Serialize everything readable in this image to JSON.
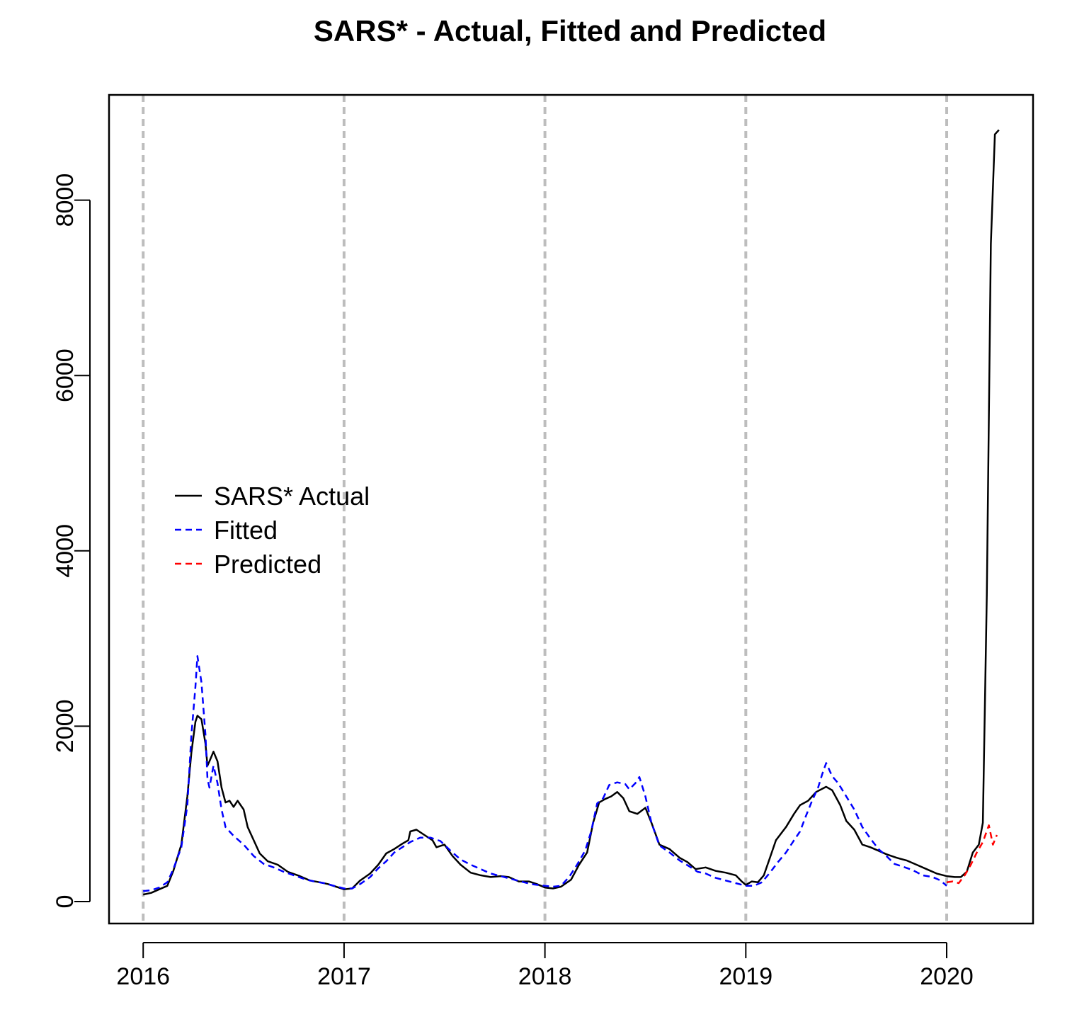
{
  "chart_data": {
    "type": "line",
    "title": "SARS* - Actual, Fitted and Predicted",
    "xlabel": "",
    "ylabel": "",
    "xlim": [
      2015.83,
      2020.43
    ],
    "ylim": [
      -250,
      9200
    ],
    "x_ticks": [
      2016,
      2017,
      2018,
      2019,
      2020
    ],
    "y_ticks": [
      0,
      2000,
      4000,
      6000,
      8000
    ],
    "grid": "vertical dashed lines at each year",
    "legend": {
      "position": "middle-left",
      "entries": [
        {
          "label": "SARS* Actual",
          "color": "#000000",
          "style": "solid"
        },
        {
          "label": "Fitted",
          "color": "#0000ff",
          "style": "dashed"
        },
        {
          "label": "Predicted",
          "color": "#ff0000",
          "style": "dashed"
        }
      ]
    },
    "series": [
      {
        "name": "SARS* Actual",
        "color": "#000000",
        "style": "solid",
        "points": [
          [
            2016.0,
            80
          ],
          [
            2016.04,
            100
          ],
          [
            2016.08,
            140
          ],
          [
            2016.12,
            180
          ],
          [
            2016.15,
            350
          ],
          [
            2016.19,
            650
          ],
          [
            2016.22,
            1200
          ],
          [
            2016.24,
            1700
          ],
          [
            2016.26,
            2050
          ],
          [
            2016.27,
            2120
          ],
          [
            2016.29,
            2080
          ],
          [
            2016.31,
            1800
          ],
          [
            2016.32,
            1550
          ],
          [
            2016.33,
            1600
          ],
          [
            2016.35,
            1710
          ],
          [
            2016.37,
            1600
          ],
          [
            2016.39,
            1300
          ],
          [
            2016.41,
            1130
          ],
          [
            2016.43,
            1150
          ],
          [
            2016.45,
            1080
          ],
          [
            2016.47,
            1150
          ],
          [
            2016.5,
            1050
          ],
          [
            2016.52,
            850
          ],
          [
            2016.55,
            700
          ],
          [
            2016.58,
            550
          ],
          [
            2016.62,
            460
          ],
          [
            2016.67,
            420
          ],
          [
            2016.72,
            340
          ],
          [
            2016.78,
            290
          ],
          [
            2016.83,
            240
          ],
          [
            2016.88,
            220
          ],
          [
            2016.92,
            200
          ],
          [
            2016.96,
            170
          ],
          [
            2017.0,
            140
          ],
          [
            2017.04,
            150
          ],
          [
            2017.08,
            240
          ],
          [
            2017.13,
            320
          ],
          [
            2017.17,
            420
          ],
          [
            2017.21,
            550
          ],
          [
            2017.25,
            600
          ],
          [
            2017.29,
            660
          ],
          [
            2017.32,
            700
          ],
          [
            2017.33,
            800
          ],
          [
            2017.36,
            820
          ],
          [
            2017.4,
            760
          ],
          [
            2017.44,
            700
          ],
          [
            2017.46,
            620
          ],
          [
            2017.5,
            650
          ],
          [
            2017.54,
            520
          ],
          [
            2017.58,
            420
          ],
          [
            2017.63,
            330
          ],
          [
            2017.68,
            300
          ],
          [
            2017.73,
            280
          ],
          [
            2017.78,
            290
          ],
          [
            2017.82,
            280
          ],
          [
            2017.87,
            230
          ],
          [
            2017.92,
            230
          ],
          [
            2017.96,
            200
          ],
          [
            2018.0,
            160
          ],
          [
            2018.04,
            150
          ],
          [
            2018.08,
            170
          ],
          [
            2018.13,
            250
          ],
          [
            2018.17,
            420
          ],
          [
            2018.21,
            560
          ],
          [
            2018.24,
            900
          ],
          [
            2018.27,
            1130
          ],
          [
            2018.3,
            1170
          ],
          [
            2018.33,
            1200
          ],
          [
            2018.36,
            1250
          ],
          [
            2018.39,
            1180
          ],
          [
            2018.42,
            1030
          ],
          [
            2018.46,
            1000
          ],
          [
            2018.5,
            1070
          ],
          [
            2018.53,
            900
          ],
          [
            2018.57,
            650
          ],
          [
            2018.62,
            600
          ],
          [
            2018.67,
            500
          ],
          [
            2018.71,
            450
          ],
          [
            2018.75,
            370
          ],
          [
            2018.8,
            390
          ],
          [
            2018.85,
            350
          ],
          [
            2018.9,
            330
          ],
          [
            2018.95,
            300
          ],
          [
            2018.98,
            230
          ],
          [
            2019.0,
            190
          ],
          [
            2019.03,
            230
          ],
          [
            2019.06,
            220
          ],
          [
            2019.09,
            300
          ],
          [
            2019.12,
            500
          ],
          [
            2019.15,
            700
          ],
          [
            2019.2,
            850
          ],
          [
            2019.24,
            1000
          ],
          [
            2019.27,
            1100
          ],
          [
            2019.31,
            1150
          ],
          [
            2019.35,
            1250
          ],
          [
            2019.4,
            1310
          ],
          [
            2019.43,
            1270
          ],
          [
            2019.47,
            1100
          ],
          [
            2019.5,
            920
          ],
          [
            2019.54,
            820
          ],
          [
            2019.58,
            650
          ],
          [
            2019.62,
            620
          ],
          [
            2019.66,
            580
          ],
          [
            2019.7,
            540
          ],
          [
            2019.75,
            500
          ],
          [
            2019.8,
            470
          ],
          [
            2019.85,
            420
          ],
          [
            2019.9,
            370
          ],
          [
            2019.95,
            320
          ],
          [
            2020.0,
            290
          ],
          [
            2020.04,
            280
          ],
          [
            2020.07,
            280
          ],
          [
            2020.1,
            340
          ],
          [
            2020.13,
            560
          ],
          [
            2020.16,
            650
          ],
          [
            2020.18,
            900
          ],
          [
            2020.2,
            3500
          ],
          [
            2020.22,
            7500
          ],
          [
            2020.24,
            8750
          ],
          [
            2020.26,
            8800
          ]
        ]
      },
      {
        "name": "Fitted",
        "color": "#0000ff",
        "style": "dashed",
        "points": [
          [
            2016.0,
            120
          ],
          [
            2016.04,
            130
          ],
          [
            2016.08,
            160
          ],
          [
            2016.12,
            220
          ],
          [
            2016.15,
            370
          ],
          [
            2016.19,
            620
          ],
          [
            2016.22,
            1100
          ],
          [
            2016.24,
            1900
          ],
          [
            2016.26,
            2450
          ],
          [
            2016.27,
            2800
          ],
          [
            2016.29,
            2500
          ],
          [
            2016.31,
            1900
          ],
          [
            2016.32,
            1400
          ],
          [
            2016.33,
            1300
          ],
          [
            2016.35,
            1550
          ],
          [
            2016.37,
            1350
          ],
          [
            2016.39,
            1050
          ],
          [
            2016.41,
            850
          ],
          [
            2016.45,
            750
          ],
          [
            2016.5,
            650
          ],
          [
            2016.55,
            520
          ],
          [
            2016.6,
            430
          ],
          [
            2016.65,
            390
          ],
          [
            2016.7,
            340
          ],
          [
            2016.75,
            300
          ],
          [
            2016.8,
            260
          ],
          [
            2016.85,
            230
          ],
          [
            2016.9,
            210
          ],
          [
            2016.95,
            180
          ],
          [
            2017.0,
            150
          ],
          [
            2017.04,
            150
          ],
          [
            2017.08,
            200
          ],
          [
            2017.13,
            280
          ],
          [
            2017.17,
            380
          ],
          [
            2017.21,
            460
          ],
          [
            2017.25,
            560
          ],
          [
            2017.29,
            620
          ],
          [
            2017.33,
            680
          ],
          [
            2017.38,
            730
          ],
          [
            2017.43,
            730
          ],
          [
            2017.48,
            690
          ],
          [
            2017.53,
            580
          ],
          [
            2017.58,
            480
          ],
          [
            2017.63,
            420
          ],
          [
            2017.68,
            370
          ],
          [
            2017.73,
            320
          ],
          [
            2017.78,
            290
          ],
          [
            2017.83,
            260
          ],
          [
            2017.88,
            230
          ],
          [
            2017.93,
            200
          ],
          [
            2018.0,
            180
          ],
          [
            2018.04,
            170
          ],
          [
            2018.08,
            180
          ],
          [
            2018.12,
            280
          ],
          [
            2018.16,
            420
          ],
          [
            2018.2,
            580
          ],
          [
            2018.23,
            800
          ],
          [
            2018.26,
            1120
          ],
          [
            2018.29,
            1180
          ],
          [
            2018.32,
            1330
          ],
          [
            2018.36,
            1360
          ],
          [
            2018.4,
            1340
          ],
          [
            2018.42,
            1280
          ],
          [
            2018.45,
            1350
          ],
          [
            2018.47,
            1420
          ],
          [
            2018.5,
            1200
          ],
          [
            2018.53,
            900
          ],
          [
            2018.57,
            640
          ],
          [
            2018.62,
            560
          ],
          [
            2018.67,
            470
          ],
          [
            2018.72,
            400
          ],
          [
            2018.76,
            340
          ],
          [
            2018.8,
            320
          ],
          [
            2018.85,
            270
          ],
          [
            2018.9,
            240
          ],
          [
            2018.95,
            210
          ],
          [
            2019.0,
            180
          ],
          [
            2019.04,
            180
          ],
          [
            2019.08,
            220
          ],
          [
            2019.12,
            330
          ],
          [
            2019.16,
            450
          ],
          [
            2019.2,
            560
          ],
          [
            2019.24,
            700
          ],
          [
            2019.27,
            800
          ],
          [
            2019.3,
            980
          ],
          [
            2019.33,
            1150
          ],
          [
            2019.36,
            1300
          ],
          [
            2019.38,
            1450
          ],
          [
            2019.4,
            1580
          ],
          [
            2019.43,
            1430
          ],
          [
            2019.46,
            1350
          ],
          [
            2019.5,
            1200
          ],
          [
            2019.54,
            1050
          ],
          [
            2019.58,
            850
          ],
          [
            2019.62,
            720
          ],
          [
            2019.66,
            600
          ],
          [
            2019.7,
            520
          ],
          [
            2019.74,
            430
          ],
          [
            2019.78,
            400
          ],
          [
            2019.83,
            360
          ],
          [
            2019.88,
            300
          ],
          [
            2019.93,
            280
          ],
          [
            2019.97,
            240
          ],
          [
            2020.0,
            180
          ]
        ]
      },
      {
        "name": "Predicted",
        "color": "#ff0000",
        "style": "dashed",
        "points": [
          [
            2020.0,
            220
          ],
          [
            2020.03,
            230
          ],
          [
            2020.06,
            210
          ],
          [
            2020.09,
            300
          ],
          [
            2020.12,
            420
          ],
          [
            2020.15,
            560
          ],
          [
            2020.18,
            680
          ],
          [
            2020.21,
            870
          ],
          [
            2020.23,
            650
          ],
          [
            2020.25,
            760
          ]
        ]
      }
    ]
  }
}
